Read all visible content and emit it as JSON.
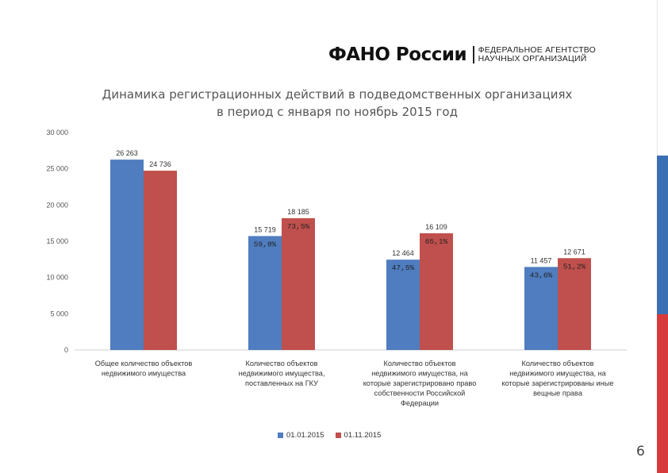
{
  "header": {
    "brand": "ФАНО России",
    "subtitle_line1": "ФЕДЕРАЛЬНОЕ АГЕНТСТВО",
    "subtitle_line2": "НАУЧНЫХ ОРГАНИЗАЦИЙ"
  },
  "page_number": "6",
  "colors": {
    "series1": "#4f7dbf",
    "series2": "#c0504d",
    "stripe_blue": "#3b6fb4",
    "stripe_red": "#d73a3a"
  },
  "chart_data": {
    "type": "bar",
    "title_line1": "Динамика регистрационных действий в подведомственных организациях",
    "title_line2": "в период с января по ноябрь 2015 год",
    "ylim": [
      0,
      30000
    ],
    "yticks": [
      "0",
      "5 000",
      "10 000",
      "15 000",
      "20 000",
      "25 000",
      "30 000"
    ],
    "ytick_values": [
      0,
      5000,
      10000,
      15000,
      20000,
      25000,
      30000
    ],
    "grid": false,
    "legend_position": "bottom",
    "categories": [
      [
        "Общее количество объектов",
        "недвижимого имущества"
      ],
      [
        "Количество объектов",
        "недвижимого имущества,",
        "поставленных на ГКУ"
      ],
      [
        "Количество объектов",
        "недвижимого имущества, на",
        "которые зарегистрировано право",
        "собственности Российской",
        "Федерации"
      ],
      [
        "Количество объектов",
        "недвижимого имущества, на",
        "которые зарегистрированы иные",
        "вещные права"
      ]
    ],
    "series": [
      {
        "name": "01.01.2015",
        "values": [
          26263,
          15719,
          12464,
          11457
        ],
        "labels": [
          "26 263",
          "15 719",
          "12 464",
          "11 457"
        ],
        "percents": [
          null,
          "59,8%",
          "47,5%",
          "43,6%"
        ]
      },
      {
        "name": "01.11.2015",
        "values": [
          24736,
          18185,
          16109,
          12671
        ],
        "labels": [
          "24 736",
          "18 185",
          "16 109",
          "12 671"
        ],
        "percents": [
          null,
          "73,5%",
          "65,1%",
          "51,2%"
        ]
      }
    ]
  }
}
